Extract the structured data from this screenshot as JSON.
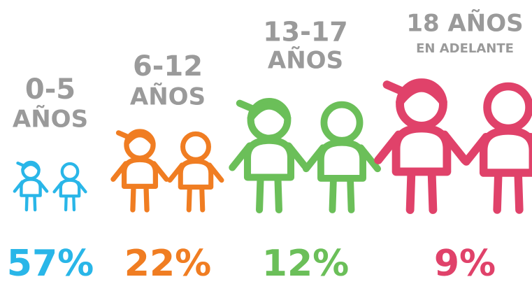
{
  "chart_data": {
    "type": "pictogram",
    "categories": [
      [
        "0-5",
        "AÑOS"
      ],
      [
        "6-12",
        "AÑOS"
      ],
      [
        "13-17",
        "AÑOS"
      ],
      [
        "18 AÑOS",
        "EN ADELANTE"
      ]
    ],
    "values": [
      57,
      22,
      12,
      9
    ],
    "value_labels": [
      "57%",
      "22%",
      "12%",
      "9%"
    ],
    "colors": [
      "#29b6e8",
      "#f07d22",
      "#6bbf59",
      "#e0426a"
    ]
  }
}
